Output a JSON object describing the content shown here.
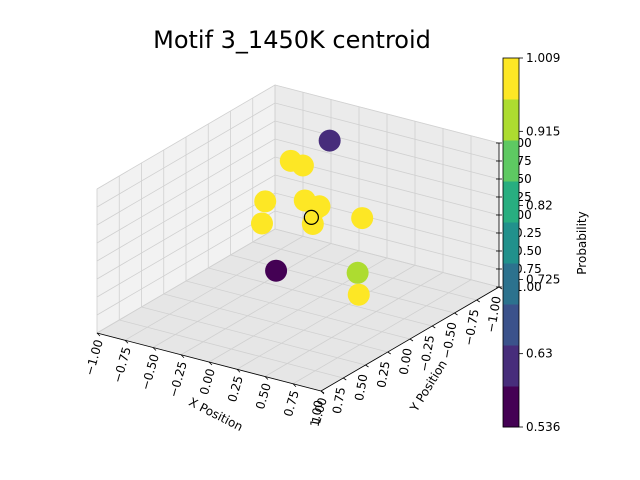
{
  "chart_data": {
    "type": "scatter",
    "projection": "3d",
    "title": "Motif 3_1450K centroid",
    "xlabel": "X Position",
    "ylabel": "Y Position",
    "zlabel": "",
    "xlim": [
      -1.0,
      1.0
    ],
    "ylim": [
      -1.0,
      1.0
    ],
    "zlim": [
      -1.0,
      1.0
    ],
    "x_ticks": [
      "−1.00",
      "−0.75",
      "−0.50",
      "−0.25",
      "0.00",
      "0.25",
      "0.50",
      "0.75",
      "1.00"
    ],
    "y_ticks": [
      "−1.00",
      "−0.75",
      "−0.50",
      "−0.25",
      "0.00",
      "0.25",
      "0.50",
      "0.75",
      "1.00"
    ],
    "z_ticks": [
      "−1.00",
      "−0.75",
      "−0.50",
      "−0.25",
      "0.00",
      "0.25",
      "0.50",
      "0.75",
      "1.00"
    ],
    "grid": true,
    "colorbar": {
      "label": "Probability",
      "colormap": "viridis",
      "min": 0.536,
      "max": 1.009,
      "ticks": [
        "1.009",
        "0.915",
        "0.82",
        "0.725",
        "0.63",
        "0.536"
      ],
      "levels": [
        "#440154",
        "#472d7b",
        "#3b528b",
        "#2c728e",
        "#21918c",
        "#28ae80",
        "#5ec962",
        "#addc30",
        "#fde725"
      ]
    },
    "points": [
      {
        "x": -0.62,
        "y": -0.21,
        "z": 0.82,
        "color": "#472d7b"
      },
      {
        "x": 0.1,
        "y": 0.14,
        "z": 0.65,
        "color": "#fde725"
      },
      {
        "x": 0.3,
        "y": 0.43,
        "z": 0.83,
        "color": "#fde725"
      },
      {
        "x": -0.85,
        "y": -0.74,
        "z": 0.16,
        "color": "#fde725"
      },
      {
        "x": -0.81,
        "y": -0.6,
        "z": 0.18,
        "color": "#fde725"
      },
      {
        "x": -0.2,
        "y": 0.0,
        "z": 0.26,
        "color": "#fde725"
      },
      {
        "x": 0.06,
        "y": 0.18,
        "z": 0.31,
        "color": "#fde725"
      },
      {
        "x": -0.18,
        "y": 0.43,
        "z": 0.32,
        "color": "#fde725"
      },
      {
        "x": 0.45,
        "y": 0.89,
        "z": 0.2,
        "color": "#addc30"
      },
      {
        "x": 0.45,
        "y": 0.9,
        "z": -0.1,
        "color": "#fde725"
      },
      {
        "x": -0.5,
        "y": -0.69,
        "z": -0.13,
        "color": "#fde725"
      },
      {
        "x": -0.3,
        "y": -0.56,
        "z": -0.24,
        "color": "#fde725"
      },
      {
        "x": 0.07,
        "y": -0.14,
        "z": -0.46,
        "color": "#440154"
      }
    ],
    "centroid": {
      "x": -0.1,
      "y": 0.04,
      "z": 0.23,
      "color": "none",
      "edge": "#000000"
    }
  }
}
